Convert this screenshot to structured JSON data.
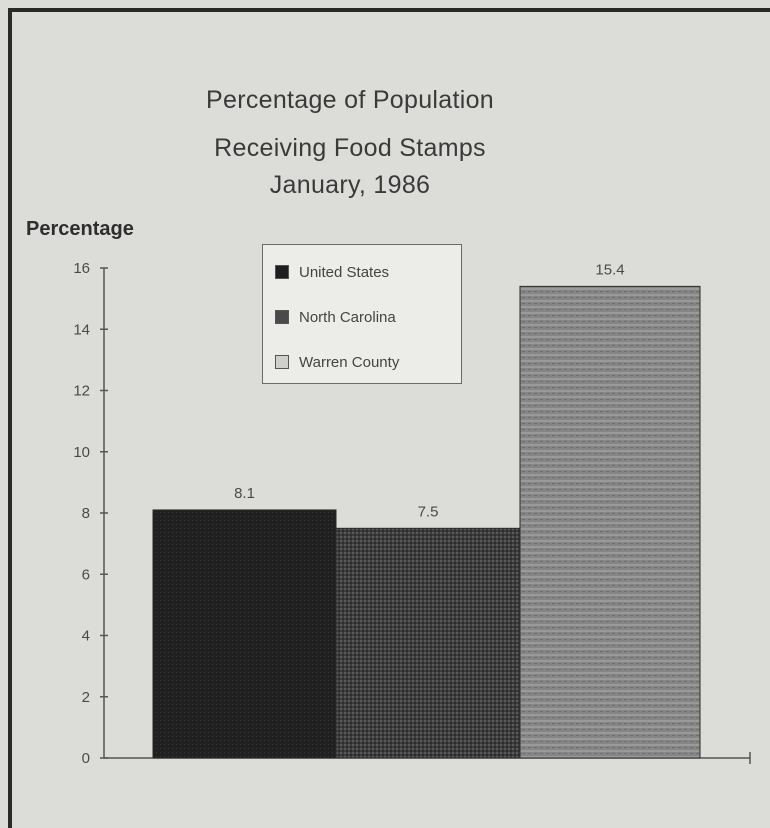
{
  "chart_data": {
    "type": "bar",
    "title_lines": [
      "Percentage of Population",
      "Receiving Food Stamps",
      "January, 1986"
    ],
    "ylabel": "Percentage",
    "xlabel": "",
    "ylim": [
      0,
      16
    ],
    "yticks": [
      0,
      2,
      4,
      6,
      8,
      10,
      12,
      14,
      16
    ],
    "grid": false,
    "legend_position": "top-center",
    "series": [
      {
        "name": "United States",
        "value": 8.1,
        "color": "#1e1e1e"
      },
      {
        "name": "North Carolina",
        "value": 7.5,
        "color": "#4a4a4a"
      },
      {
        "name": "Warren County",
        "value": 15.4,
        "color": "#8c8c8c"
      }
    ],
    "data_labels": [
      "8.1",
      "7.5",
      "15.4"
    ]
  }
}
